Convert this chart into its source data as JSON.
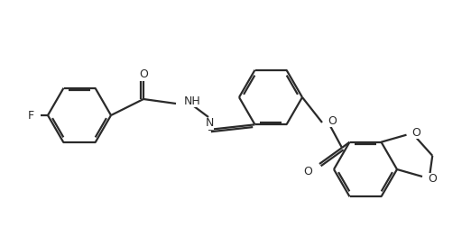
{
  "bg_color": "#ffffff",
  "line_color": "#2a2a2a",
  "line_width": 1.6,
  "figsize": [
    5.22,
    2.52
  ],
  "dpi": 100,
  "F_label": "F",
  "NH_label": "NH",
  "N_label": "N",
  "O_label": "O",
  "O_ester_label": "O",
  "O_top_label": "O",
  "O_dox1_label": "O",
  "O_dox2_label": "O"
}
